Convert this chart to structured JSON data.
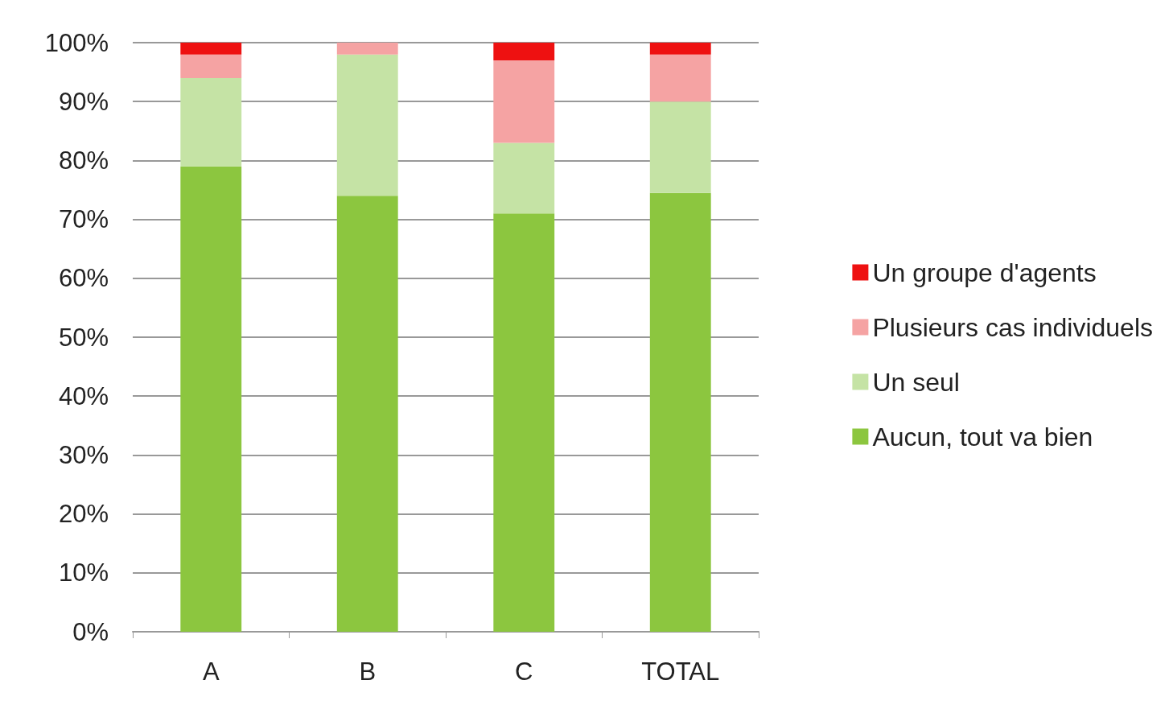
{
  "chart_data": {
    "type": "bar",
    "stacked": true,
    "categories": [
      "A",
      "B",
      "C",
      "TOTAL"
    ],
    "series": [
      {
        "name": "Aucun, tout va bien",
        "color": "#8cc63f",
        "values": [
          79,
          74,
          71,
          74.5
        ]
      },
      {
        "name": "Un seul",
        "color": "#c5e3a5",
        "values": [
          15,
          24,
          12,
          15.5
        ]
      },
      {
        "name": "Plusieurs cas individuels",
        "color": "#f5a3a3",
        "values": [
          4,
          2,
          14,
          8
        ]
      },
      {
        "name": "Un groupe d'agents",
        "color": "#ee1111",
        "values": [
          2,
          0,
          3,
          2
        ]
      }
    ],
    "ylim": [
      0,
      100
    ],
    "yticks": [
      {
        "value": 0,
        "label": "0%"
      },
      {
        "value": 10,
        "label": "10%"
      },
      {
        "value": 20,
        "label": "20%"
      },
      {
        "value": 30,
        "label": "30%"
      },
      {
        "value": 40,
        "label": "40%"
      },
      {
        "value": 50,
        "label": "50%"
      },
      {
        "value": 60,
        "label": "60%"
      },
      {
        "value": 70,
        "label": "70%"
      },
      {
        "value": 80,
        "label": "80%"
      },
      {
        "value": 90,
        "label": "90%"
      },
      {
        "value": 100,
        "label": "100%"
      }
    ],
    "grid": "y",
    "legend": "right"
  }
}
